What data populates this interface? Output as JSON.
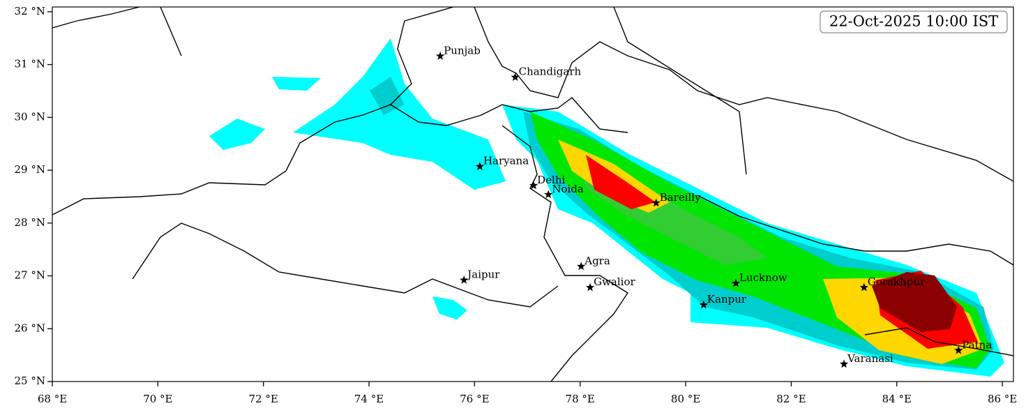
{
  "map": {
    "timestamp": "22-Oct-2025 10:00 IST",
    "xlim": [
      68,
      86.21
    ],
    "ylim": [
      25,
      32.09
    ],
    "xticks": [
      {
        "value": 68,
        "label": "68 °E"
      },
      {
        "value": 70,
        "label": "70 °E"
      },
      {
        "value": 72,
        "label": "72 °E"
      },
      {
        "value": 74,
        "label": "74 °E"
      },
      {
        "value": 76,
        "label": "76 °E"
      },
      {
        "value": 78,
        "label": "78 °E"
      },
      {
        "value": 80,
        "label": "80 °E"
      },
      {
        "value": 82,
        "label": "82 °E"
      },
      {
        "value": 84,
        "label": "84 °E"
      },
      {
        "value": 86,
        "label": "86 °E"
      }
    ],
    "yticks": [
      {
        "value": 25,
        "label": "25 °N"
      },
      {
        "value": 26,
        "label": "26 °N"
      },
      {
        "value": 27,
        "label": "27 °N"
      },
      {
        "value": 28,
        "label": "28 °N"
      },
      {
        "value": 29,
        "label": "29 °N"
      },
      {
        "value": 30,
        "label": "30 °N"
      },
      {
        "value": 31,
        "label": "31 °N"
      },
      {
        "value": 32,
        "label": "32 °N"
      }
    ],
    "cities": [
      {
        "name": "Punjab",
        "lon": 75.35,
        "lat": 31.16
      },
      {
        "name": "Chandigarh",
        "lon": 76.77,
        "lat": 30.76
      },
      {
        "name": "Haryana",
        "lon": 76.1,
        "lat": 29.07
      },
      {
        "name": "Delhi",
        "lon": 77.12,
        "lat": 28.71
      },
      {
        "name": "Noida",
        "lon": 77.4,
        "lat": 28.54
      },
      {
        "name": "Bareilly",
        "lon": 79.44,
        "lat": 28.38
      },
      {
        "name": "Agra",
        "lon": 78.02,
        "lat": 27.18
      },
      {
        "name": "Jaipur",
        "lon": 75.8,
        "lat": 26.92
      },
      {
        "name": "Gwalior",
        "lon": 78.19,
        "lat": 26.78
      },
      {
        "name": "Lucknow",
        "lon": 80.95,
        "lat": 26.86
      },
      {
        "name": "Kanpur",
        "lon": 80.34,
        "lat": 26.45
      },
      {
        "name": "Gorakhpur",
        "lon": 83.38,
        "lat": 26.78
      },
      {
        "name": "Varanasi",
        "lon": 83.0,
        "lat": 25.33
      },
      {
        "name": "Patna",
        "lon": 85.17,
        "lat": 25.59
      }
    ]
  }
}
